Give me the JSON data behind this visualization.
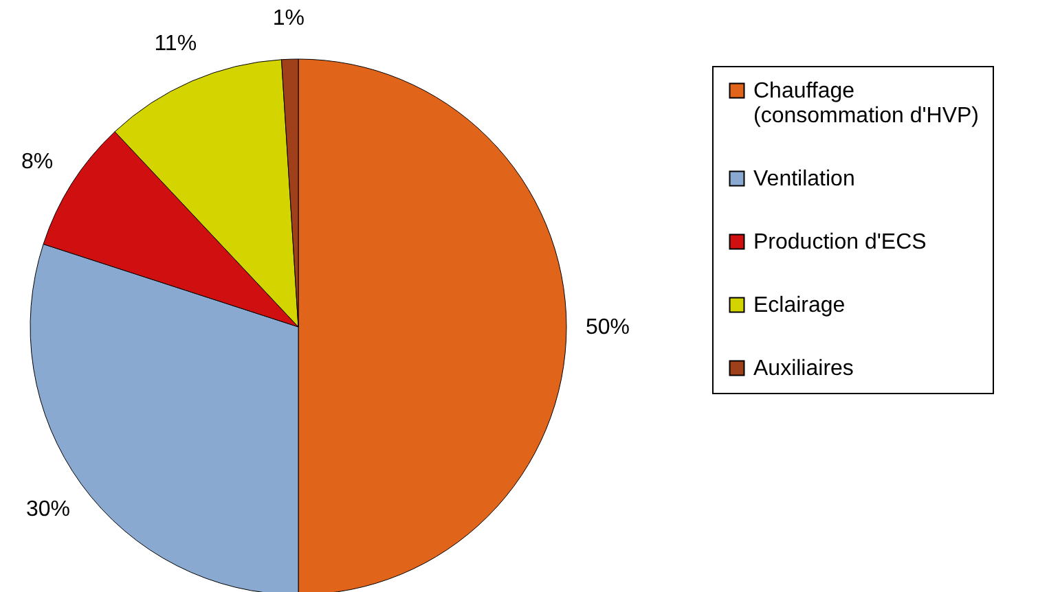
{
  "chart_data": {
    "type": "pie",
    "categories": [
      "Chauffage (consommation d'HVP)",
      "Ventilation",
      "Production d'ECS",
      "Eclairage",
      "Auxiliaires"
    ],
    "values": [
      50,
      30,
      8,
      11,
      1
    ],
    "colors": [
      "#e0651a",
      "#8aa9d0",
      "#d01010",
      "#d4d400",
      "#a0401a"
    ],
    "value_labels": [
      "50%",
      "30%",
      "8%",
      "11%",
      "1%"
    ],
    "legend": "right"
  }
}
